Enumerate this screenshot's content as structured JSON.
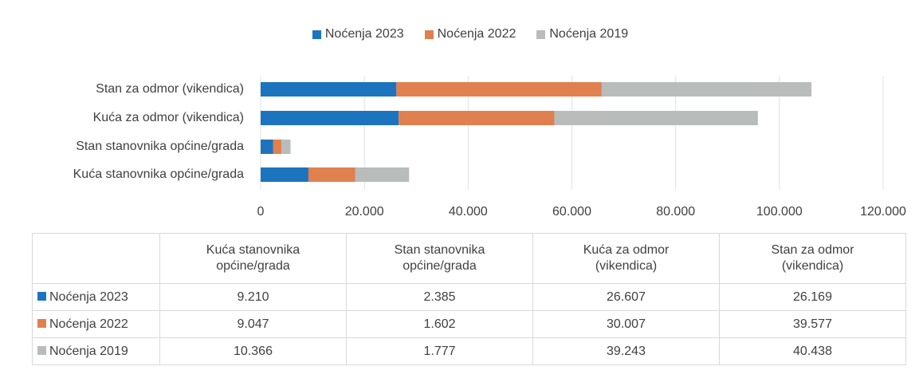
{
  "chart_data": {
    "type": "bar",
    "orientation": "horizontal",
    "stacked": true,
    "categories": [
      "Kuća stanovnika općine/grada",
      "Stan stanovnika općine/grada",
      "Kuća za odmor (vikendica)",
      "Stan za odmor (vikendica)"
    ],
    "series": [
      {
        "name": "Noćenja 2023",
        "color": "#1b74bd",
        "values": [
          9210,
          2385,
          26607,
          26169
        ],
        "value_labels": [
          "9.210",
          "2.385",
          "26.607",
          "26.169"
        ]
      },
      {
        "name": "Noćenja 2022",
        "color": "#e0804f",
        "values": [
          9047,
          1602,
          30007,
          39577
        ],
        "value_labels": [
          "9.047",
          "1.602",
          "30.007",
          "39.577"
        ]
      },
      {
        "name": "Noćenja 2019",
        "color": "#b8bcba",
        "values": [
          10366,
          1777,
          39243,
          40438
        ],
        "value_labels": [
          "10.366",
          "1.777",
          "39.243",
          "40.438"
        ]
      }
    ],
    "xlim": [
      0,
      120000
    ],
    "xticks": [
      0,
      {
        "value": 20000,
        "label": "20.000"
      },
      {
        "value": 40000,
        "label": "40.000"
      },
      {
        "value": 60000,
        "label": "60.000"
      },
      {
        "value": 80000,
        "label": "80.000"
      },
      {
        "value": 100000,
        "label": "100.000"
      },
      {
        "value": 120000,
        "label": "120.000"
      }
    ],
    "grid": true,
    "legend": "top",
    "data_table": true
  }
}
